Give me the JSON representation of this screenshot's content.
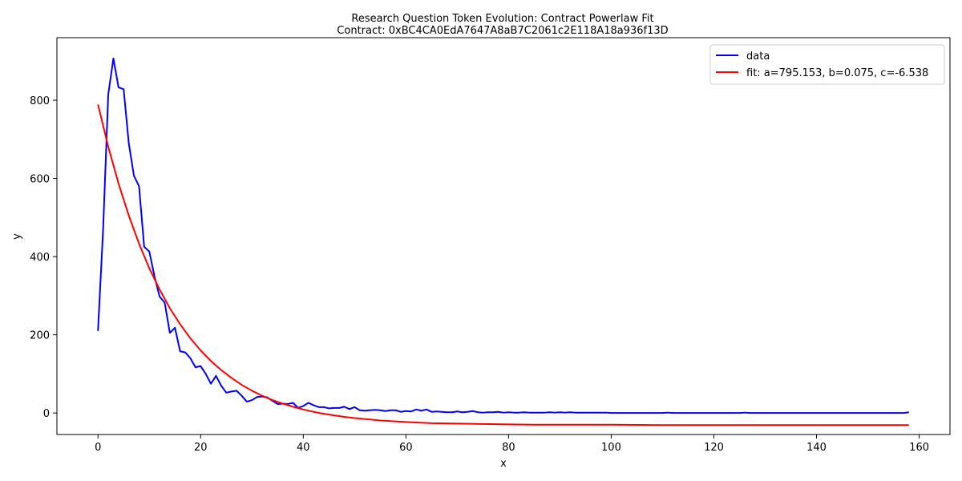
{
  "chart_data": {
    "type": "line",
    "title": "Research Question Token Evolution: Contract Powerlaw Fit",
    "subtitle": "Contract: 0xBC4CA0EdA7647A8aB7C2061c2E118A18a936f13D",
    "xlabel": "x",
    "ylabel": "y",
    "xlim": [
      -8,
      166
    ],
    "ylim": [
      -55,
      960
    ],
    "xticks": [
      0,
      20,
      40,
      60,
      80,
      100,
      120,
      140,
      160
    ],
    "yticks": [
      0,
      200,
      400,
      600,
      800
    ],
    "grid": false,
    "legend_position": "top-right",
    "series": [
      {
        "name": "data",
        "color": "#0000ff",
        "x": [
          0,
          1,
          2,
          3,
          4,
          5,
          6,
          7,
          8,
          9,
          10,
          11,
          12,
          13,
          14,
          15,
          16,
          17,
          18,
          19,
          20,
          21,
          22,
          23,
          24,
          25,
          26,
          27,
          28,
          29,
          30,
          31,
          32,
          33,
          34,
          35,
          36,
          37,
          38,
          39,
          40,
          41,
          42,
          43,
          44,
          45,
          46,
          47,
          48,
          49,
          50,
          51,
          52,
          53,
          54,
          55,
          56,
          57,
          58,
          59,
          60,
          61,
          62,
          63,
          64,
          65,
          66,
          67,
          68,
          69,
          70,
          71,
          72,
          73,
          74,
          75,
          76,
          77,
          78,
          79,
          80,
          81,
          82,
          83,
          84,
          85,
          86,
          87,
          88,
          89,
          90,
          91,
          92,
          93,
          94,
          95,
          96,
          97,
          98,
          99,
          100,
          105,
          110,
          111,
          112,
          115,
          120,
          125,
          126,
          127,
          130,
          135,
          140,
          145,
          150,
          155,
          157,
          158
        ],
        "y": [
          210,
          470,
          815,
          907,
          833,
          828,
          690,
          607,
          580,
          425,
          413,
          350,
          298,
          282,
          205,
          218,
          158,
          155,
          140,
          117,
          120,
          100,
          75,
          95,
          70,
          52,
          55,
          57,
          44,
          29,
          33,
          41,
          42,
          40,
          31,
          23,
          24,
          23,
          26,
          13,
          18,
          26,
          20,
          15,
          15,
          12,
          13,
          13,
          16,
          10,
          15,
          7,
          6,
          7,
          8,
          7,
          5,
          7,
          7,
          3,
          5,
          4,
          9,
          6,
          9,
          3,
          4,
          3,
          2,
          2,
          4,
          2,
          3,
          5,
          2,
          1,
          2,
          2,
          3,
          1,
          2,
          1,
          1,
          2,
          1,
          1,
          1,
          1,
          2,
          1,
          2,
          1,
          2,
          1,
          1,
          1,
          1,
          1,
          1,
          1,
          0,
          0,
          0,
          1,
          0,
          0,
          0,
          0,
          1,
          0,
          0,
          0,
          0,
          0,
          0,
          0,
          0,
          2
        ]
      },
      {
        "name": "fit: a=795.153, b=0.075, c=-6.538",
        "color": "#ff0000",
        "x": [
          0,
          2,
          4,
          6,
          8,
          10,
          12,
          14,
          16,
          18,
          20,
          22,
          24,
          26,
          28,
          30,
          32,
          34,
          36,
          38,
          40,
          42,
          44,
          46,
          48,
          50,
          55,
          60,
          65,
          70,
          75,
          80,
          85,
          90,
          95,
          100,
          110,
          120,
          130,
          140,
          150,
          158
        ],
        "y": [
          789,
          681,
          587,
          505,
          433,
          370,
          316,
          268,
          227,
          191,
          160,
          133,
          110,
          90,
          72,
          57,
          44,
          33,
          24,
          16,
          9,
          3,
          -2,
          -6,
          -10,
          -13,
          -19,
          -23,
          -26,
          -27,
          -28,
          -29,
          -30,
          -30,
          -30,
          -30,
          -31,
          -31,
          -31,
          -31,
          -31,
          -31
        ]
      }
    ]
  }
}
